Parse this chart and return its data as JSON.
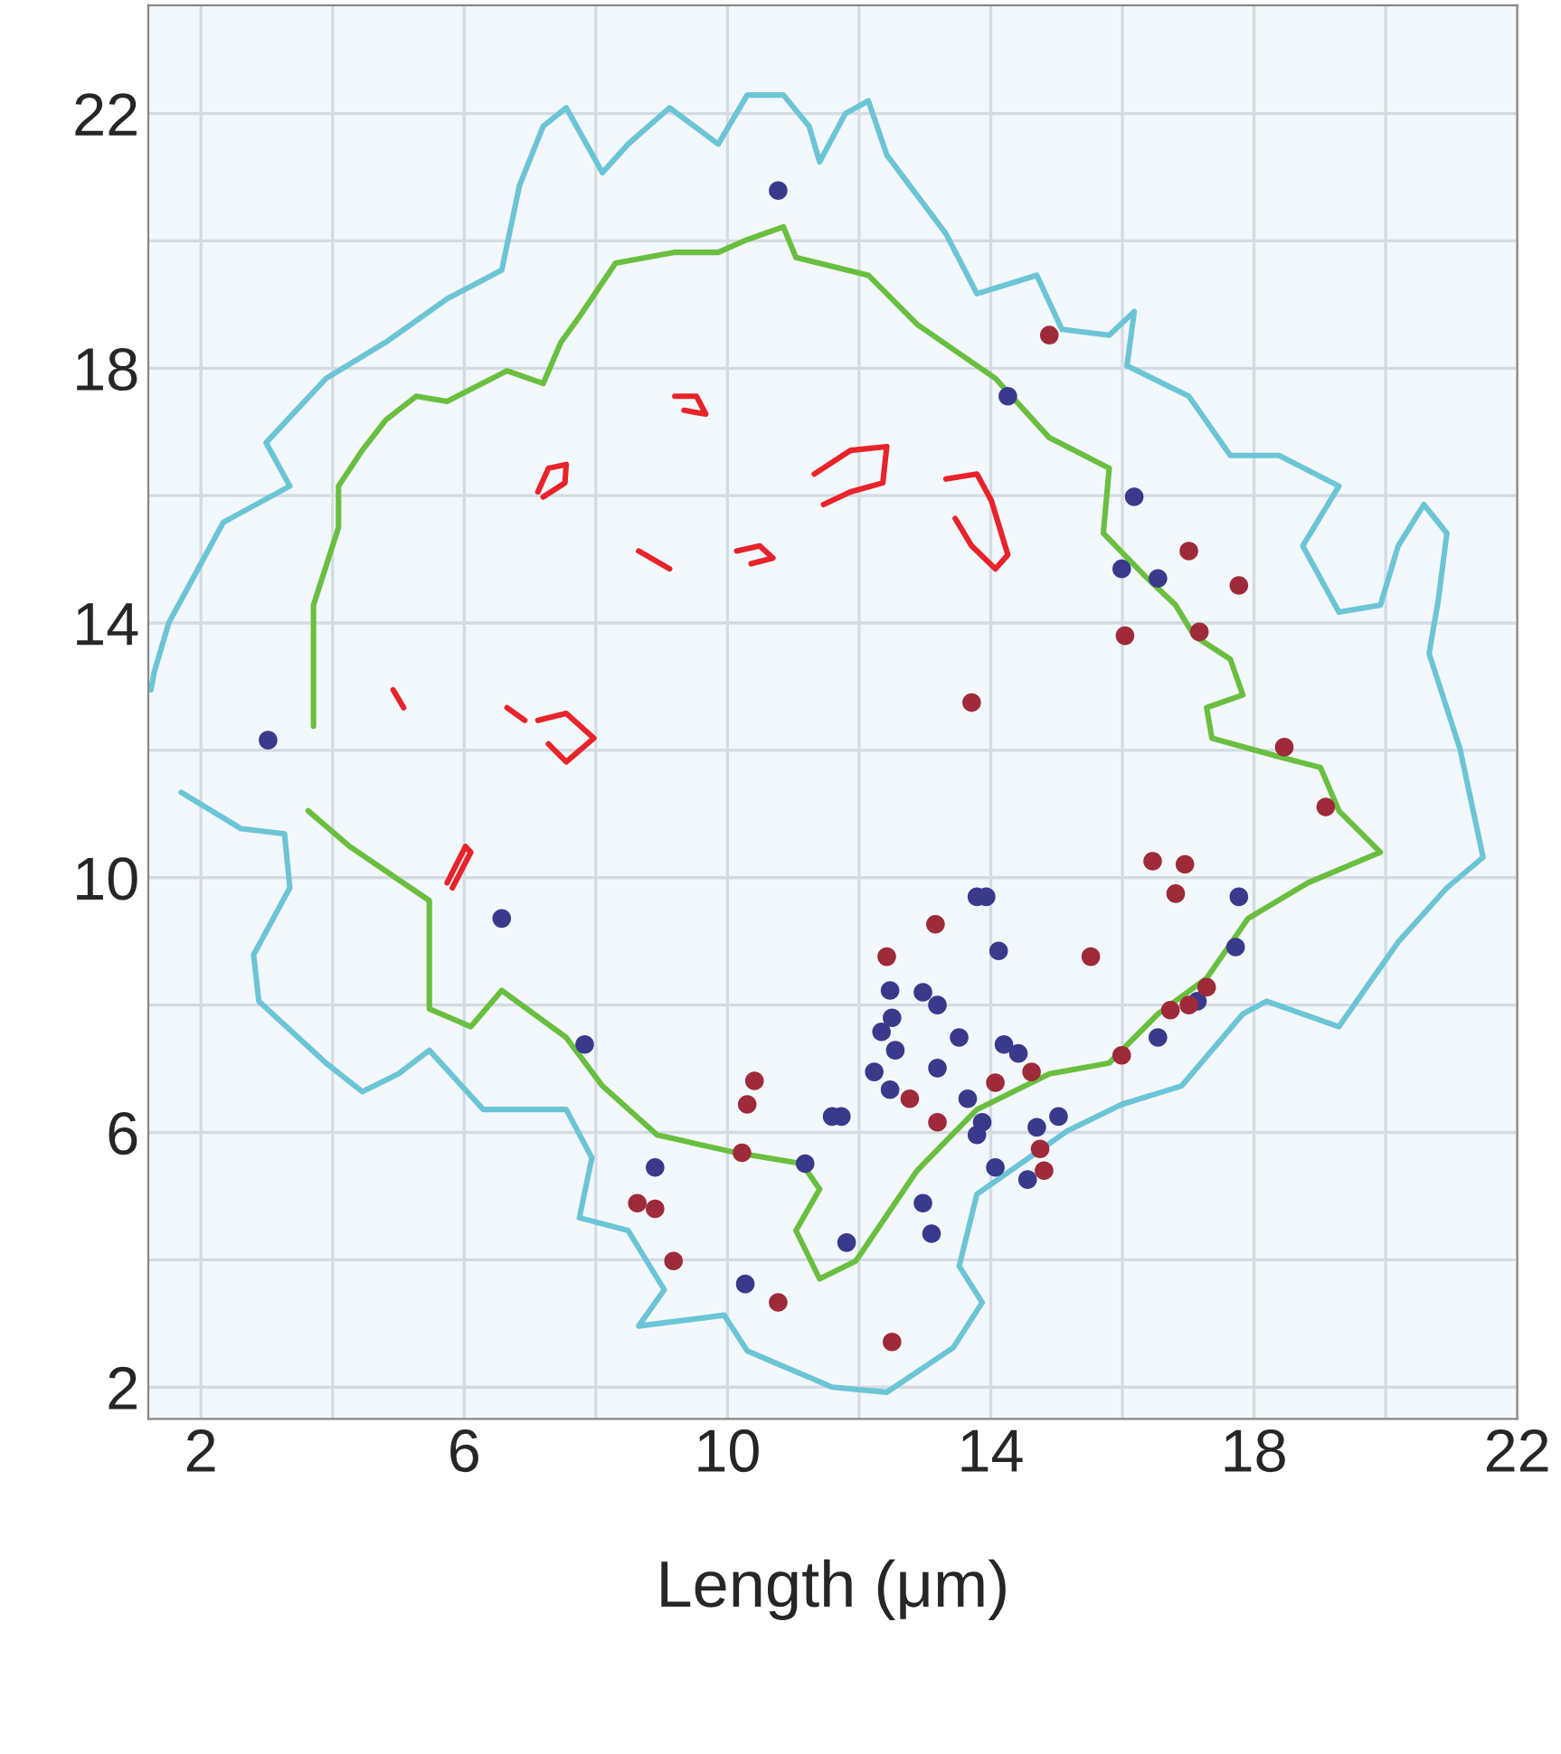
{
  "chart_data": {
    "type": "scatter",
    "xlabel": "Length (μm)",
    "xlim": [
      1.2,
      22.0
    ],
    "ylim": [
      1.5,
      23.7
    ],
    "xticks": [
      2,
      {
        "value": 4,
        "label": null
      },
      6,
      {
        "value": 8,
        "label": null
      },
      10,
      {
        "value": 12,
        "label": null
      },
      14,
      {
        "value": 16,
        "label": null
      },
      18,
      {
        "value": 20,
        "label": null
      },
      22
    ],
    "yticks": [
      2,
      {
        "value": 4,
        "label": null
      },
      6,
      {
        "value": 8,
        "label": null
      },
      10,
      {
        "value": 12,
        "label": null
      },
      14,
      {
        "value": 16,
        "label": null
      },
      18,
      {
        "value": 20,
        "label": null
      },
      22
    ],
    "grid": true,
    "series": [
      {
        "type": "line",
        "color": "#6cc5d6",
        "x": [
          1.24,
          1.29,
          1.51,
          2.34,
          3.35,
          2.99,
          3.9,
          4.81,
          5.74,
          6.57,
          6.84,
          7.2,
          7.55,
          8.1,
          8.49,
          9.12,
          9.86,
          10.3,
          10.85,
          11.24,
          11.4,
          11.79,
          12.14,
          12.42,
          13.32,
          13.79,
          14.7,
          15.08,
          15.8,
          16.18,
          16.07,
          17.01,
          17.64,
          18.38,
          19.29,
          18.74,
          19.29,
          19.92,
          20.19,
          20.58,
          20.93,
          20.8,
          20.66,
          21.13,
          21.48,
          20.93,
          20.19,
          19.29,
          18.19,
          17.83,
          16.9,
          15.99,
          15.16,
          13.79,
          13.52,
          13.87,
          13.43,
          12.42,
          11.59,
          10.3,
          9.95,
          8.65,
          9.04,
          8.49,
          7.75,
          7.94,
          7.55,
          6.29,
          5.47,
          5.0,
          4.45,
          3.9,
          2.88,
          2.8,
          3.35,
          3.27,
          2.61,
          1.7
        ],
        "values": [
          12.95,
          13.23,
          14.0,
          15.58,
          16.15,
          16.83,
          17.84,
          18.41,
          19.09,
          19.54,
          20.87,
          21.8,
          22.09,
          21.07,
          21.52,
          22.09,
          21.52,
          22.29,
          22.29,
          21.8,
          21.24,
          22.0,
          22.2,
          21.35,
          20.11,
          19.17,
          19.46,
          18.61,
          18.52,
          18.89,
          18.04,
          17.56,
          16.63,
          16.63,
          16.15,
          15.21,
          14.17,
          14.28,
          15.21,
          15.86,
          15.41,
          14.36,
          13.52,
          12.02,
          10.32,
          9.84,
          8.99,
          7.66,
          8.06,
          7.86,
          6.73,
          6.44,
          6.02,
          5.03,
          3.9,
          3.33,
          2.62,
          1.92,
          2.0,
          2.57,
          3.13,
          2.96,
          3.53,
          4.46,
          4.66,
          5.6,
          6.36,
          6.36,
          7.29,
          6.92,
          6.64,
          7.09,
          8.06,
          8.79,
          9.84,
          10.69,
          10.77,
          11.34
        ]
      },
      {
        "type": "line",
        "color": "#6abf40",
        "x": [
          3.71,
          3.71,
          4.09,
          4.09,
          4.45,
          4.81,
          5.27,
          5.74,
          6.65,
          7.2,
          7.47,
          7.75,
          8.3,
          9.2,
          9.86,
          10.3,
          10.85,
          11.04,
          12.14,
          12.88,
          14.07,
          14.89,
          15.8,
          15.71,
          16.35,
          16.81,
          17.09,
          17.64,
          17.83,
          17.28,
          17.36,
          18.38,
          19.01,
          19.29,
          19.92,
          18.82,
          17.91,
          17.28,
          16.54,
          15.8,
          14.89,
          13.79,
          12.88,
          11.95,
          11.4,
          11.04,
          11.4,
          11.13,
          10.14,
          8.93,
          8.1,
          7.55,
          6.57,
          6.1,
          5.47,
          5.47,
          4.26,
          3.63
        ],
        "values": [
          12.38,
          14.28,
          15.5,
          16.15,
          16.71,
          17.19,
          17.56,
          17.48,
          17.96,
          17.76,
          18.41,
          18.81,
          19.65,
          19.82,
          19.82,
          20.02,
          20.22,
          19.74,
          19.46,
          18.69,
          17.84,
          16.91,
          16.43,
          15.41,
          14.73,
          14.28,
          13.8,
          13.43,
          12.87,
          12.67,
          12.19,
          11.9,
          11.73,
          11.05,
          10.4,
          9.92,
          9.36,
          8.42,
          7.86,
          7.09,
          6.92,
          6.36,
          5.4,
          3.98,
          3.7,
          4.46,
          5.11,
          5.51,
          5.68,
          5.96,
          6.73,
          7.49,
          8.23,
          7.66,
          7.94,
          9.64,
          10.49,
          11.05
        ]
      },
      {
        "type": "line",
        "color": "#e8232a",
        "x": [
          7.12,
          7.28,
          7.55,
          7.53,
          7.2
        ],
        "values": [
          16.06,
          16.43,
          16.49,
          16.2,
          15.98
        ]
      },
      {
        "type": "line",
        "color": "#e8232a",
        "x": [
          9.2,
          9.53,
          9.67,
          9.34
        ],
        "values": [
          17.56,
          17.56,
          17.28,
          17.34
        ]
      },
      {
        "type": "line",
        "color": "#e8232a",
        "x": [
          8.65,
          9.12
        ],
        "values": [
          15.13,
          14.85
        ]
      },
      {
        "type": "line",
        "color": "#e8232a",
        "x": [
          10.14,
          10.49,
          10.69,
          10.36
        ],
        "values": [
          15.13,
          15.21,
          15.02,
          14.93
        ]
      },
      {
        "type": "line",
        "color": "#e8232a",
        "x": [
          11.32,
          11.87,
          12.42,
          12.36,
          11.87,
          11.46
        ],
        "values": [
          16.34,
          16.71,
          16.77,
          16.2,
          16.06,
          15.86
        ]
      },
      {
        "type": "line",
        "color": "#e8232a",
        "x": [
          13.32,
          13.79,
          14.01,
          14.26,
          14.07,
          13.71,
          13.46
        ],
        "values": [
          16.26,
          16.34,
          15.92,
          15.07,
          14.85,
          15.21,
          15.64
        ]
      },
      {
        "type": "line",
        "color": "#e8232a",
        "x": [
          4.92,
          5.08
        ],
        "values": [
          12.95,
          12.67
        ]
      },
      {
        "type": "line",
        "color": "#e8232a",
        "x": [
          6.65,
          6.92
        ],
        "values": [
          12.67,
          12.47
        ]
      },
      {
        "type": "line",
        "color": "#e8232a",
        "x": [
          7.12,
          7.55,
          7.97,
          7.55,
          7.28
        ],
        "values": [
          12.47,
          12.58,
          12.19,
          11.82,
          12.1
        ]
      },
      {
        "type": "line",
        "color": "#e8232a",
        "x": [
          5.74,
          6.02,
          6.1,
          5.82
        ],
        "values": [
          9.92,
          10.49,
          10.4,
          9.84
        ]
      },
      {
        "marker": "circle",
        "color": "#3a3a8c",
        "x": [
          10.77,
          3.02,
          14.26,
          16.18,
          15.99,
          16.54,
          7.83,
          8.9,
          10.27,
          11.18,
          11.59,
          17.77,
          17.72,
          13.79,
          13.93,
          14.12,
          12.47,
          12.97,
          13.19,
          12.5,
          12.34,
          12.55,
          13.52,
          14.2,
          14.42,
          12.23,
          13.19,
          12.47,
          13.65,
          11.73,
          13.87,
          13.79,
          14.7,
          15.03,
          14.07,
          14.56,
          16.54,
          17.14,
          12.97,
          13.1,
          11.81,
          6.57
        ],
        "values": [
          20.79,
          12.16,
          17.56,
          15.98,
          14.85,
          14.7,
          7.38,
          5.45,
          3.62,
          5.51,
          6.25,
          9.7,
          8.91,
          9.7,
          9.7,
          8.85,
          8.23,
          8.2,
          8.0,
          7.8,
          7.58,
          7.29,
          7.49,
          7.38,
          7.24,
          6.95,
          7.01,
          6.67,
          6.53,
          6.25,
          6.16,
          5.96,
          6.08,
          6.25,
          5.45,
          5.26,
          7.49,
          8.06,
          4.89,
          4.41,
          4.27,
          9.36
        ]
      },
      {
        "marker": "circle",
        "color": "#9e2a3a",
        "x": [
          14.89,
          16.04,
          17.17,
          17.01,
          17.77,
          13.71,
          10.41,
          10.3,
          10.22,
          8.63,
          8.9,
          9.18,
          10.77,
          18.46,
          19.09,
          16.46,
          16.95,
          16.81,
          15.52,
          13.16,
          12.42,
          14.07,
          14.62,
          12.77,
          13.19,
          14.75,
          14.81,
          15.99,
          16.73,
          17.01,
          17.28,
          12.5
        ],
        "values": [
          18.52,
          13.8,
          13.86,
          15.13,
          14.59,
          12.75,
          6.81,
          6.44,
          5.68,
          4.89,
          4.8,
          3.98,
          3.33,
          12.05,
          11.11,
          10.26,
          10.21,
          9.75,
          8.76,
          9.27,
          8.76,
          6.78,
          6.95,
          6.53,
          6.16,
          5.74,
          5.4,
          7.21,
          7.92,
          8.0,
          8.28,
          2.71
        ]
      }
    ]
  }
}
